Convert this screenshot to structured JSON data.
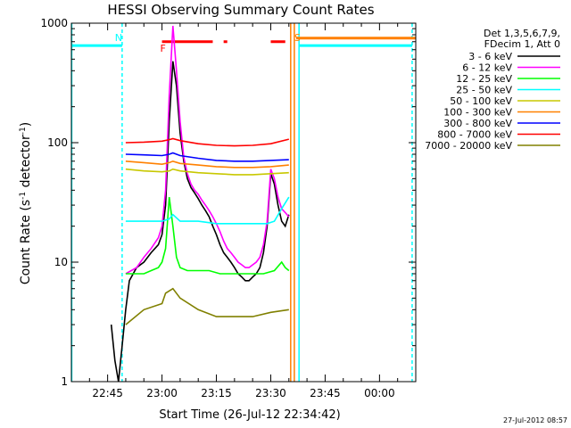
{
  "chart_data": {
    "type": "line",
    "title": "HESSI Observing Summary Count Rates",
    "xlabel": "Start Time (26-Jul-12 22:34:42)",
    "ylabel": "Count Rate (s⁻¹ detector⁻¹)",
    "ylabel_parts": [
      "Count Rate (s",
      "-1",
      " detector",
      "-1",
      ")"
    ],
    "yscale": "log",
    "ylim": [
      1,
      1000
    ],
    "xlim_min": [
      -10,
      85
    ],
    "yticks": [
      "1",
      "10",
      "100",
      "1000"
    ],
    "yticks_values": [
      1,
      10,
      100,
      1000
    ],
    "xticks": [
      "22:45",
      "23:00",
      "23:15",
      "23:30",
      "23:45",
      "00:00"
    ],
    "xticks_min": [
      0,
      15,
      30,
      45,
      60,
      75
    ],
    "legend_header": [
      "Det 1,3,5,6,7,9,",
      "FDecim 1, Att 0"
    ],
    "legend_position": "top-right outside",
    "footer_date": "27-Jul-2012 08:57",
    "markers": [
      {
        "label": "N",
        "color": "#00ffff",
        "text_at_min": 2
      },
      {
        "label": "F",
        "color": "#ff0000",
        "text_at_min": 14.5
      },
      {
        "label": "S",
        "color": "#ff8000",
        "text_at_min": 51.5
      }
    ],
    "flare_flag": {
      "color": "#ff0000",
      "level": 700,
      "segments": [
        [
          15,
          29
        ],
        [
          32,
          33
        ],
        [
          45,
          49
        ]
      ]
    },
    "saa_flag": {
      "color": "#ff8000",
      "level": 750,
      "start": 52
    },
    "night_flag": {
      "color": "#00ffff",
      "level": 650,
      "start": -10,
      "end": 4
    },
    "event_lines": [
      {
        "color": "#00ffff",
        "style": "dashed",
        "x_min": 4
      },
      {
        "color": "#ff8000",
        "style": "solid",
        "x_min": 50.5
      },
      {
        "color": "#ff8000",
        "style": "solid",
        "x_min": 51.5
      },
      {
        "color": "#00ffff",
        "style": "solid",
        "x_min": 52.8
      },
      {
        "color": "#00ffff",
        "style": "dashed",
        "x_min": 84
      },
      {
        "color": "#00ffff",
        "style": "solid",
        "x_min": -9.9
      }
    ],
    "series": [
      {
        "name": "3 - 6 keV",
        "color": "#000000",
        "x": [
          1,
          2,
          3,
          4,
          5,
          6,
          8,
          10,
          12,
          14,
          15,
          16,
          17,
          18,
          19,
          20,
          21,
          22,
          23,
          24,
          25,
          26,
          27,
          28,
          29,
          30,
          31,
          32,
          33,
          34,
          35,
          36,
          37,
          38,
          39,
          40,
          41,
          42,
          43,
          44,
          45,
          46,
          47,
          48,
          49,
          50
        ],
        "y": [
          3,
          1.5,
          1,
          2,
          4,
          7,
          9,
          10,
          12,
          14,
          17,
          30,
          150,
          480,
          300,
          120,
          70,
          50,
          42,
          38,
          34,
          30,
          27,
          24,
          20,
          17,
          14,
          12,
          11,
          10,
          9,
          8,
          7.5,
          7,
          7,
          7.5,
          8,
          9,
          12,
          20,
          55,
          45,
          30,
          22,
          20,
          25
        ]
      },
      {
        "name": "6 - 12 keV",
        "color": "#ff00ff",
        "x": [
          5,
          8,
          10,
          12,
          14,
          15,
          16,
          17,
          18,
          19,
          20,
          21,
          22,
          23,
          24,
          25,
          26,
          27,
          28,
          29,
          30,
          31,
          32,
          33,
          34,
          35,
          36,
          37,
          38,
          39,
          40,
          41,
          42,
          43,
          44,
          45,
          46,
          47,
          48,
          49,
          50
        ],
        "y": [
          8,
          9,
          11,
          13,
          16,
          20,
          40,
          250,
          950,
          400,
          150,
          75,
          55,
          45,
          40,
          37,
          33,
          30,
          27,
          24,
          21,
          18,
          15,
          13,
          12,
          11,
          10,
          9.5,
          9,
          9,
          9.5,
          10,
          11,
          14,
          22,
          60,
          50,
          35,
          28,
          26,
          24
        ]
      },
      {
        "name": "12 - 25 keV",
        "color": "#00ff00",
        "x": [
          5,
          8,
          10,
          12,
          14,
          15,
          16,
          17,
          18,
          19,
          20,
          22,
          25,
          28,
          31,
          34,
          37,
          40,
          43,
          46,
          48,
          49,
          50
        ],
        "y": [
          8,
          8,
          8,
          8.5,
          9,
          10,
          13,
          35,
          20,
          11,
          9,
          8.5,
          8.5,
          8.5,
          8,
          8,
          8,
          8,
          8,
          8.5,
          10,
          9,
          8.5
        ]
      },
      {
        "name": "25 - 50 keV",
        "color": "#00ffff",
        "x": [
          5,
          10,
          15,
          17,
          18,
          20,
          25,
          30,
          35,
          40,
          44,
          46,
          48,
          50
        ],
        "y": [
          22,
          22,
          22,
          23,
          25,
          22,
          22,
          21,
          21,
          21,
          21,
          22,
          28,
          35
        ]
      },
      {
        "name": "50 - 100 keV",
        "color": "#c8c800",
        "x": [
          5,
          10,
          15,
          17,
          18,
          20,
          25,
          30,
          35,
          40,
          45,
          50
        ],
        "y": [
          60,
          58,
          57,
          58,
          60,
          58,
          56,
          55,
          54,
          54,
          55,
          56
        ]
      },
      {
        "name": "100 - 300 keV",
        "color": "#ff8000",
        "x": [
          5,
          10,
          15,
          17,
          18,
          20,
          25,
          30,
          35,
          40,
          45,
          50
        ],
        "y": [
          70,
          68,
          66,
          68,
          70,
          67,
          65,
          63,
          62,
          62,
          63,
          65
        ]
      },
      {
        "name": "300 - 800 keV",
        "color": "#0000ff",
        "x": [
          5,
          10,
          15,
          17,
          18,
          20,
          25,
          30,
          35,
          40,
          45,
          50
        ],
        "y": [
          80,
          79,
          78,
          80,
          82,
          78,
          74,
          71,
          70,
          70,
          71,
          72
        ]
      },
      {
        "name": "800 - 7000 keV",
        "color": "#ff0000",
        "x": [
          5,
          10,
          15,
          17,
          18,
          20,
          25,
          30,
          35,
          40,
          45,
          50
        ],
        "y": [
          100,
          101,
          103,
          106,
          108,
          104,
          98,
          95,
          94,
          95,
          98,
          107
        ]
      },
      {
        "name": "7000 - 20000 keV",
        "color": "#808000",
        "x": [
          5,
          10,
          15,
          16,
          18,
          20,
          25,
          30,
          35,
          40,
          45,
          50
        ],
        "y": [
          3,
          4,
          4.5,
          5.5,
          6,
          5,
          4,
          3.5,
          3.5,
          3.5,
          3.8,
          4
        ]
      }
    ]
  }
}
